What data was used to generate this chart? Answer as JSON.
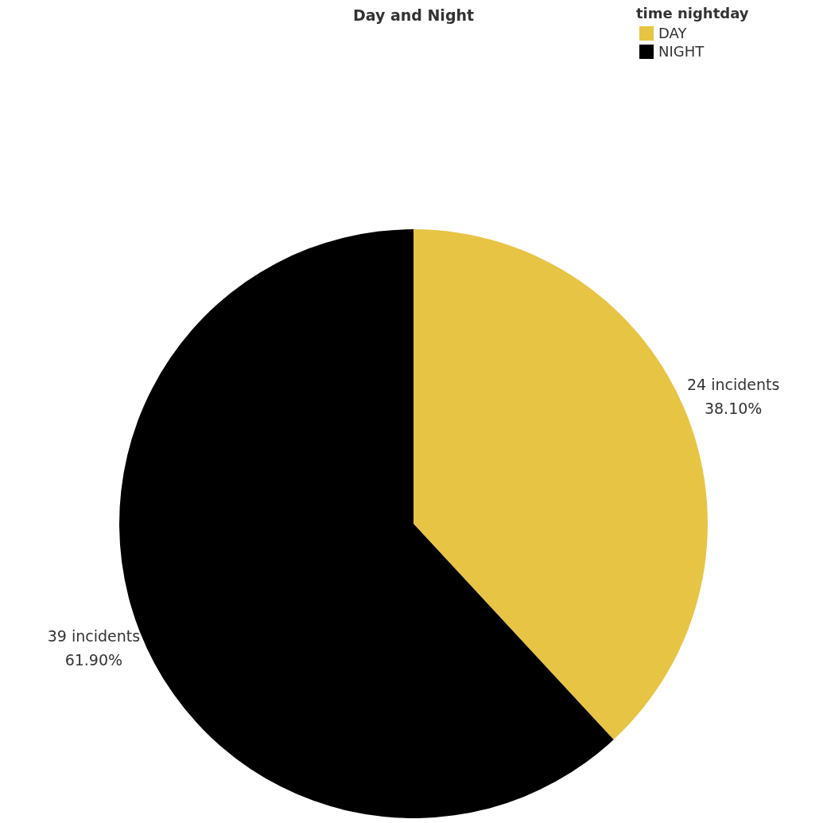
{
  "chart_data": {
    "type": "pie",
    "title": "Day and Night",
    "legend_title": "time nightday",
    "categories": [
      "DAY",
      "NIGHT"
    ],
    "values": [
      24,
      39
    ],
    "colors": [
      "#e8c444",
      "#000000"
    ],
    "value_labels": [
      "24 incidents\n38.10%",
      "39 incidents\n61.90%"
    ],
    "legend": "top right"
  }
}
